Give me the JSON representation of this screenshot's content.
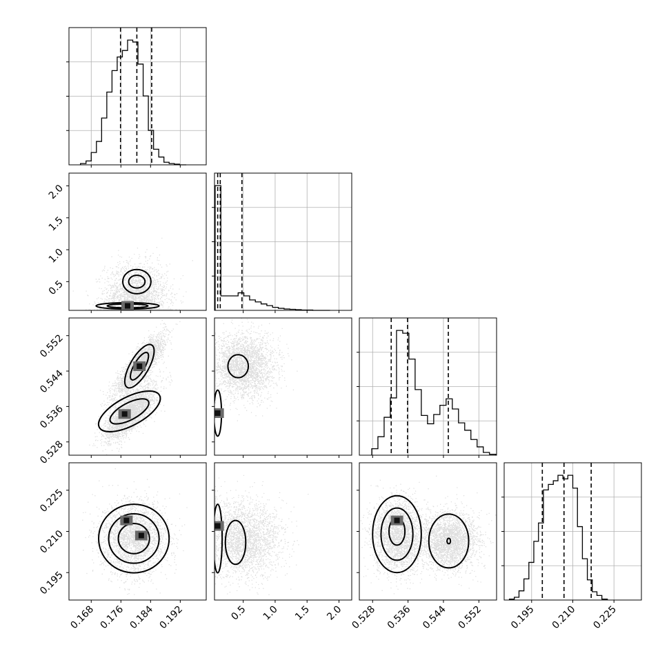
{
  "chart_data": {
    "type": "corner",
    "parameters": [
      {
        "key": "p1",
        "range": [
          0.162,
          0.199
        ],
        "ticks": [
          "0.168",
          "0.176",
          "0.184",
          "0.192"
        ],
        "tick_values": [
          0.168,
          0.176,
          0.184,
          0.192
        ]
      },
      {
        "key": "p2",
        "range": [
          0.05,
          2.2
        ],
        "ticks": [
          "0.5",
          "1.0",
          "1.5",
          "2.0"
        ],
        "tick_values": [
          0.5,
          1.0,
          1.5,
          2.0
        ]
      },
      {
        "key": "p3",
        "range": [
          0.525,
          0.556
        ],
        "ticks": [
          "0.528",
          "0.536",
          "0.544",
          "0.552"
        ],
        "tick_values": [
          0.528,
          0.536,
          0.544,
          0.552
        ]
      },
      {
        "key": "p4",
        "range": [
          0.185,
          0.235
        ],
        "ticks": [
          "0.195",
          "0.210",
          "0.225"
        ],
        "tick_values": [
          0.195,
          0.21,
          0.225
        ]
      }
    ],
    "histograms": [
      {
        "quantiles": [
          0.1759,
          0.1803,
          0.1843
        ],
        "bin_edges": [
          0.1651,
          0.1666,
          0.168,
          0.1694,
          0.1708,
          0.1722,
          0.1736,
          0.175,
          0.1764,
          0.1778,
          0.1792,
          0.1806,
          0.182,
          0.1834,
          0.1848,
          0.1862,
          0.1876,
          0.189,
          0.1904,
          0.1918,
          0.1936
        ],
        "counts": [
          2,
          6,
          19,
          36,
          72,
          112,
          145,
          166,
          176,
          192,
          189,
          155,
          106,
          53,
          24,
          12,
          4,
          2,
          1,
          0
        ]
      },
      {
        "quantiles": [
          0.1,
          0.14,
          0.48
        ],
        "bin_edges": [
          0.06,
          0.15,
          0.24,
          0.33,
          0.42,
          0.51,
          0.6,
          0.69,
          0.78,
          0.87,
          0.96,
          1.05,
          1.14,
          1.23,
          1.32,
          1.41,
          1.5,
          1.59,
          1.68,
          1.77,
          1.86
        ],
        "counts": [
          370,
          43,
          43,
          43,
          52,
          43,
          31,
          25,
          19,
          14,
          9,
          6,
          4,
          3,
          2,
          1,
          1,
          0,
          0,
          0
        ]
      },
      {
        "quantiles": [
          0.5322,
          0.5359,
          0.5451
        ],
        "bin_edges": [
          0.5278,
          0.5292,
          0.5306,
          0.532,
          0.5334,
          0.5348,
          0.5362,
          0.5376,
          0.539,
          0.5404,
          0.5418,
          0.5432,
          0.5446,
          0.546,
          0.5474,
          0.5488,
          0.5502,
          0.5516,
          0.553,
          0.5544,
          0.5558
        ],
        "counts": [
          7,
          20,
          41,
          62,
          135,
          132,
          104,
          71,
          43,
          34,
          44,
          54,
          61,
          50,
          35,
          27,
          17,
          9,
          3,
          1
        ]
      },
      {
        "quantiles": [
          0.1989,
          0.2068,
          0.2167
        ],
        "bin_edges": [
          0.1869,
          0.1887,
          0.1904,
          0.1922,
          0.194,
          0.1958,
          0.1975,
          0.1993,
          0.2011,
          0.2029,
          0.2046,
          0.2064,
          0.2082,
          0.21,
          0.2117,
          0.2135,
          0.2153,
          0.2171,
          0.2188,
          0.2206,
          0.2226
        ],
        "counts": [
          1,
          3,
          10,
          23,
          41,
          64,
          84,
          120,
          126,
          130,
          136,
          132,
          136,
          122,
          80,
          45,
          22,
          9,
          5,
          1
        ]
      }
    ],
    "pairs": [
      {
        "x": 0,
        "y": 1,
        "clouds": [
          {
            "cx": 0.18,
            "cy": 0.22,
            "sx": 0.0042,
            "sy": 0.28
          }
        ],
        "contours": [
          {
            "cx": 0.1778,
            "cy": 0.12,
            "rx": 0.0085,
            "ry": 0.05
          },
          {
            "cx": 0.1778,
            "cy": 0.12,
            "rx": 0.0055,
            "ry": 0.03
          },
          {
            "cx": 0.1803,
            "cy": 0.5,
            "rx": 0.0038,
            "ry": 0.19
          },
          {
            "cx": 0.1803,
            "cy": 0.5,
            "rx": 0.0022,
            "ry": 0.1
          }
        ],
        "hot": [
          {
            "x": 0.1778,
            "y": 0.12
          }
        ]
      },
      {
        "x": 0,
        "y": 2,
        "clouds": [
          {
            "cx": 0.181,
            "cy": 0.5451,
            "sx": 0.0033,
            "sy": 0.0034,
            "rho": 0.85
          },
          {
            "cx": 0.1785,
            "cy": 0.5345,
            "sx": 0.0034,
            "sy": 0.003,
            "rho": 0.75
          }
        ],
        "contours": [
          {
            "cx": 0.181,
            "cy": 0.5451,
            "rx": 0.0066,
            "ry": 0.0021,
            "angle": -60
          },
          {
            "cx": 0.181,
            "cy": 0.5451,
            "rx": 0.0042,
            "ry": 0.0012,
            "angle": -60
          },
          {
            "cx": 0.1783,
            "cy": 0.5349,
            "rx": 0.0092,
            "ry": 0.0032,
            "angle": -28
          },
          {
            "cx": 0.1783,
            "cy": 0.5349,
            "rx": 0.0058,
            "ry": 0.0019,
            "angle": -28
          }
        ],
        "hot": [
          {
            "x": 0.181,
            "y": 0.5451
          },
          {
            "x": 0.177,
            "y": 0.5343
          }
        ]
      },
      {
        "x": 0,
        "y": 3,
        "clouds": [
          {
            "cx": 0.1795,
            "cy": 0.2074,
            "sx": 0.0044,
            "sy": 0.0066
          }
        ],
        "contours": [
          {
            "cx": 0.1795,
            "cy": 0.2074,
            "rx": 0.0095,
            "ry": 0.0125
          },
          {
            "cx": 0.1795,
            "cy": 0.2074,
            "rx": 0.0068,
            "ry": 0.009
          },
          {
            "cx": 0.1795,
            "cy": 0.2074,
            "rx": 0.0042,
            "ry": 0.0055
          }
        ],
        "hot": [
          {
            "x": 0.1775,
            "y": 0.214
          },
          {
            "x": 0.1815,
            "y": 0.2085
          }
        ]
      },
      {
        "x": 1,
        "y": 2,
        "clouds": [
          {
            "cx": 0.5,
            "cy": 0.5451,
            "sx": 0.25,
            "sy": 0.0036
          }
        ],
        "contours": [
          {
            "cx": 0.42,
            "cy": 0.5451,
            "rx": 0.16,
            "ry": 0.0026
          },
          {
            "cx": 0.1,
            "cy": 0.5345,
            "rx": 0.06,
            "ry": 0.0052
          }
        ],
        "hot": [
          {
            "x": 0.1,
            "y": 0.5345
          }
        ]
      },
      {
        "x": 1,
        "y": 3,
        "clouds": [
          {
            "cx": 0.5,
            "cy": 0.2074,
            "sx": 0.3,
            "sy": 0.0068
          }
        ],
        "contours": [
          {
            "cx": 0.38,
            "cy": 0.206,
            "rx": 0.16,
            "ry": 0.008
          },
          {
            "cx": 0.1,
            "cy": 0.2074,
            "rx": 0.07,
            "ry": 0.0125
          }
        ],
        "hot": [
          {
            "x": 0.1,
            "y": 0.212
          }
        ]
      },
      {
        "x": 2,
        "y": 3,
        "clouds": [
          {
            "cx": 0.5335,
            "cy": 0.2085,
            "sx": 0.0028,
            "sy": 0.0068
          },
          {
            "cx": 0.5452,
            "cy": 0.2065,
            "sx": 0.0032,
            "sy": 0.0052
          }
        ],
        "contours": [
          {
            "cx": 0.5335,
            "cy": 0.209,
            "rx": 0.0055,
            "ry": 0.014
          },
          {
            "cx": 0.5335,
            "cy": 0.209,
            "rx": 0.0036,
            "ry": 0.0095
          },
          {
            "cx": 0.5335,
            "cy": 0.21,
            "rx": 0.0018,
            "ry": 0.005
          },
          {
            "cx": 0.5452,
            "cy": 0.2065,
            "rx": 0.0045,
            "ry": 0.0098
          },
          {
            "cx": 0.5452,
            "cy": 0.2065,
            "rx": 0.0004,
            "ry": 0.001
          }
        ],
        "hot": [
          {
            "x": 0.5335,
            "y": 0.214
          }
        ]
      }
    ]
  }
}
